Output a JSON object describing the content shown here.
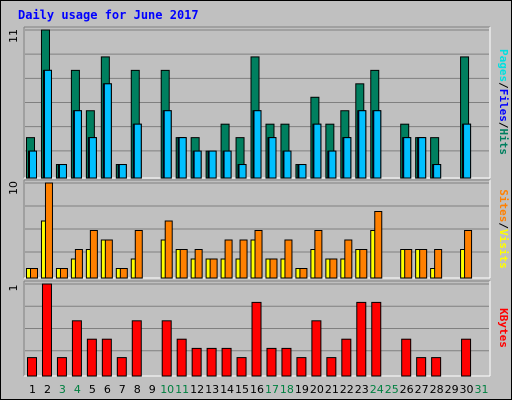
{
  "title": "Daily usage for June 2017",
  "colors": {
    "hits": "#007f5f",
    "files": "#00c0ff",
    "sites": "#ff8000",
    "visits": "#ffff00",
    "kbytes": "#ff0000",
    "weekday": "#000000",
    "weekend": "#008040",
    "background": "#c0c0c0",
    "slash": "#000000"
  },
  "chart_data": [
    {
      "type": "bar",
      "panel": "hits-files-pages",
      "ymax_label": "11",
      "legend": [
        {
          "text": "Pages",
          "color": "#00e0e0"
        },
        {
          "text": "Files",
          "color": "#0000ff"
        },
        {
          "text": "Hits",
          "color": "#007f5f"
        }
      ],
      "ylim": [
        0,
        11
      ],
      "series": [
        {
          "name": "Hits",
          "values": [
            3,
            11,
            1,
            8,
            5,
            9,
            1,
            8,
            0,
            8,
            3,
            3,
            2,
            4,
            3,
            9,
            4,
            4,
            1,
            6,
            4,
            5,
            7,
            8,
            0,
            4,
            3,
            3,
            0,
            9
          ]
        },
        {
          "name": "Files",
          "values": [
            2,
            8,
            1,
            5,
            3,
            7,
            1,
            4,
            0,
            5,
            3,
            2,
            2,
            2,
            1,
            5,
            3,
            2,
            1,
            4,
            2,
            3,
            5,
            5,
            0,
            3,
            3,
            1,
            0,
            4
          ]
        },
        {
          "name": "Pages",
          "values": [
            2,
            8,
            1,
            5,
            3,
            7,
            1,
            4,
            0,
            5,
            3,
            2,
            2,
            2,
            1,
            5,
            3,
            2,
            1,
            4,
            2,
            3,
            5,
            5,
            0,
            3,
            3,
            1,
            0,
            4
          ]
        }
      ]
    },
    {
      "type": "bar",
      "panel": "visits-sites",
      "ymax_label": "10",
      "legend": [
        {
          "text": "Sites",
          "color": "#ff8000"
        },
        {
          "text": "Visits",
          "color": "#ffff00"
        }
      ],
      "ylim": [
        0,
        10
      ],
      "series": [
        {
          "name": "Visits",
          "values": [
            1,
            6,
            1,
            2,
            3,
            4,
            1,
            2,
            0,
            4,
            3,
            2,
            2,
            2,
            2,
            4,
            2,
            2,
            1,
            3,
            2,
            2,
            3,
            5,
            0,
            3,
            3,
            1,
            0,
            3
          ]
        },
        {
          "name": "Sites",
          "values": [
            1,
            10,
            1,
            3,
            5,
            4,
            1,
            5,
            0,
            6,
            3,
            3,
            2,
            4,
            4,
            5,
            2,
            4,
            1,
            5,
            2,
            4,
            3,
            7,
            0,
            3,
            3,
            3,
            0,
            5
          ]
        }
      ]
    },
    {
      "type": "bar",
      "panel": "kbytes",
      "ymax_label": "1",
      "legend": [
        {
          "text": "KBytes",
          "color": "#ff0000"
        }
      ],
      "ylim": [
        0,
        1
      ],
      "series": [
        {
          "name": "KBytes",
          "values": [
            0.2,
            1.0,
            0.2,
            0.6,
            0.4,
            0.4,
            0.2,
            0.6,
            0,
            0.6,
            0.4,
            0.3,
            0.3,
            0.3,
            0.2,
            0.8,
            0.3,
            0.3,
            0.2,
            0.6,
            0.2,
            0.4,
            0.8,
            0.8,
            0,
            0.4,
            0.2,
            0.2,
            0,
            0.4
          ]
        }
      ]
    }
  ],
  "x_axis": {
    "categories": [
      "1",
      "2",
      "3",
      "4",
      "5",
      "6",
      "7",
      "8",
      "9",
      "10",
      "11",
      "12",
      "13",
      "14",
      "15",
      "16",
      "17",
      "18",
      "19",
      "20",
      "21",
      "22",
      "23",
      "24",
      "25",
      "26",
      "27",
      "28",
      "29",
      "30",
      "31"
    ],
    "weekend_days": [
      "3",
      "4",
      "10",
      "11",
      "17",
      "18",
      "24",
      "25",
      "31"
    ]
  }
}
